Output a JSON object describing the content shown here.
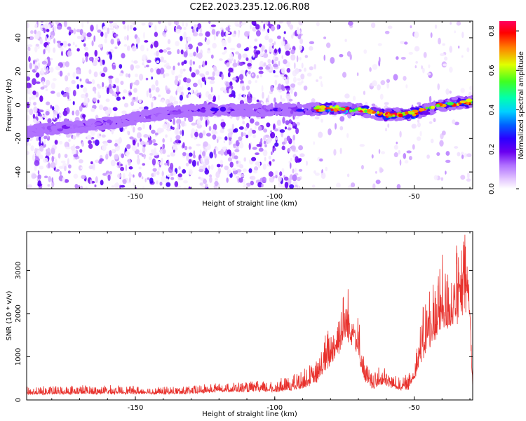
{
  "title": "C2E2.2023.235.12.06.R08",
  "colors": {
    "snr_line": "#e8312c",
    "colormap": [
      "#ffffff",
      "#e2c4ff",
      "#b070ff",
      "#6a00f0",
      "#2a00ff",
      "#0060ff",
      "#00d0ff",
      "#00ffb0",
      "#40ff20",
      "#e0ff00",
      "#ff8000",
      "#ff0000",
      "#ff0060"
    ]
  },
  "chart_data": [
    {
      "type": "heatmap",
      "name": "spectrogram",
      "xlabel": "Height of straight line (km)",
      "ylabel": "Frequency (Hz)",
      "xlim": [
        -189,
        -29
      ],
      "ylim": [
        -50,
        50
      ],
      "x_ticks": [
        -150,
        -100,
        -50
      ],
      "y_ticks": [
        -40,
        -20,
        0,
        20,
        40
      ],
      "colorbar": {
        "label": "Normalized spectral amplitude",
        "range": [
          0,
          0.85
        ],
        "ticks": [
          0.0,
          0.2,
          0.4,
          0.6,
          0.8
        ]
      },
      "ridge": {
        "x": [
          -189,
          -180,
          -170,
          -160,
          -150,
          -140,
          -130,
          -120,
          -110,
          -100,
          -90,
          -80,
          -70,
          -60,
          -50,
          -40,
          -30
        ],
        "frequency": [
          -16,
          -14,
          -13,
          -11,
          -8,
          -5,
          -3,
          -3,
          -3,
          -3,
          -3,
          -2,
          -3,
          -6,
          -5,
          0,
          2
        ],
        "amplitude": [
          0.15,
          0.25,
          0.25,
          0.3,
          0.22,
          0.22,
          0.25,
          0.3,
          0.3,
          0.3,
          0.35,
          0.7,
          0.7,
          0.65,
          0.75,
          0.5,
          0.6
        ]
      }
    },
    {
      "type": "line",
      "name": "snr",
      "xlabel": "Height of straight line (km)",
      "ylabel": "SNR (10 * v/v)",
      "xlim": [
        -189,
        -29
      ],
      "ylim": [
        0,
        3900
      ],
      "x_ticks": [
        -150,
        -100,
        -50
      ],
      "y_ticks": [
        0,
        1000,
        2000,
        3000
      ],
      "envelope": {
        "x": [
          -189,
          -170,
          -160,
          -150,
          -140,
          -130,
          -120,
          -110,
          -100,
          -95,
          -90,
          -85,
          -82,
          -78,
          -75,
          -72,
          -70,
          -68,
          -65,
          -62,
          -58,
          -55,
          -52,
          -50,
          -48,
          -45,
          -42,
          -40,
          -38,
          -36,
          -34,
          -32,
          -31,
          -30,
          -29
        ],
        "base": [
          130,
          140,
          150,
          150,
          140,
          150,
          200,
          200,
          200,
          230,
          300,
          420,
          700,
          1100,
          1400,
          1400,
          1000,
          500,
          250,
          400,
          300,
          250,
          260,
          500,
          900,
          1300,
          1500,
          1700,
          1800,
          1900,
          2000,
          2200,
          2400,
          1800,
          300
        ],
        "peak": [
          300,
          350,
          330,
          320,
          300,
          330,
          400,
          420,
          450,
          550,
          700,
          900,
          1500,
          2000,
          2700,
          2700,
          2000,
          1000,
          600,
          800,
          600,
          500,
          600,
          1000,
          1800,
          2600,
          3100,
          3400,
          3000,
          3300,
          3500,
          3900,
          3600,
          2600,
          500
        ]
      }
    }
  ],
  "axes_labels": {
    "x_tick_labels": [
      "-150",
      "-100",
      "-50"
    ],
    "top_y_tick_labels": [
      "40",
      "20",
      "0",
      "-20",
      "-40"
    ],
    "bottom_y_tick_labels": [
      "3000",
      "2000",
      "1000",
      "0"
    ],
    "colorbar_tick_labels": [
      "0.8",
      "0.6",
      "0.4",
      "0.2",
      "0.0"
    ]
  }
}
